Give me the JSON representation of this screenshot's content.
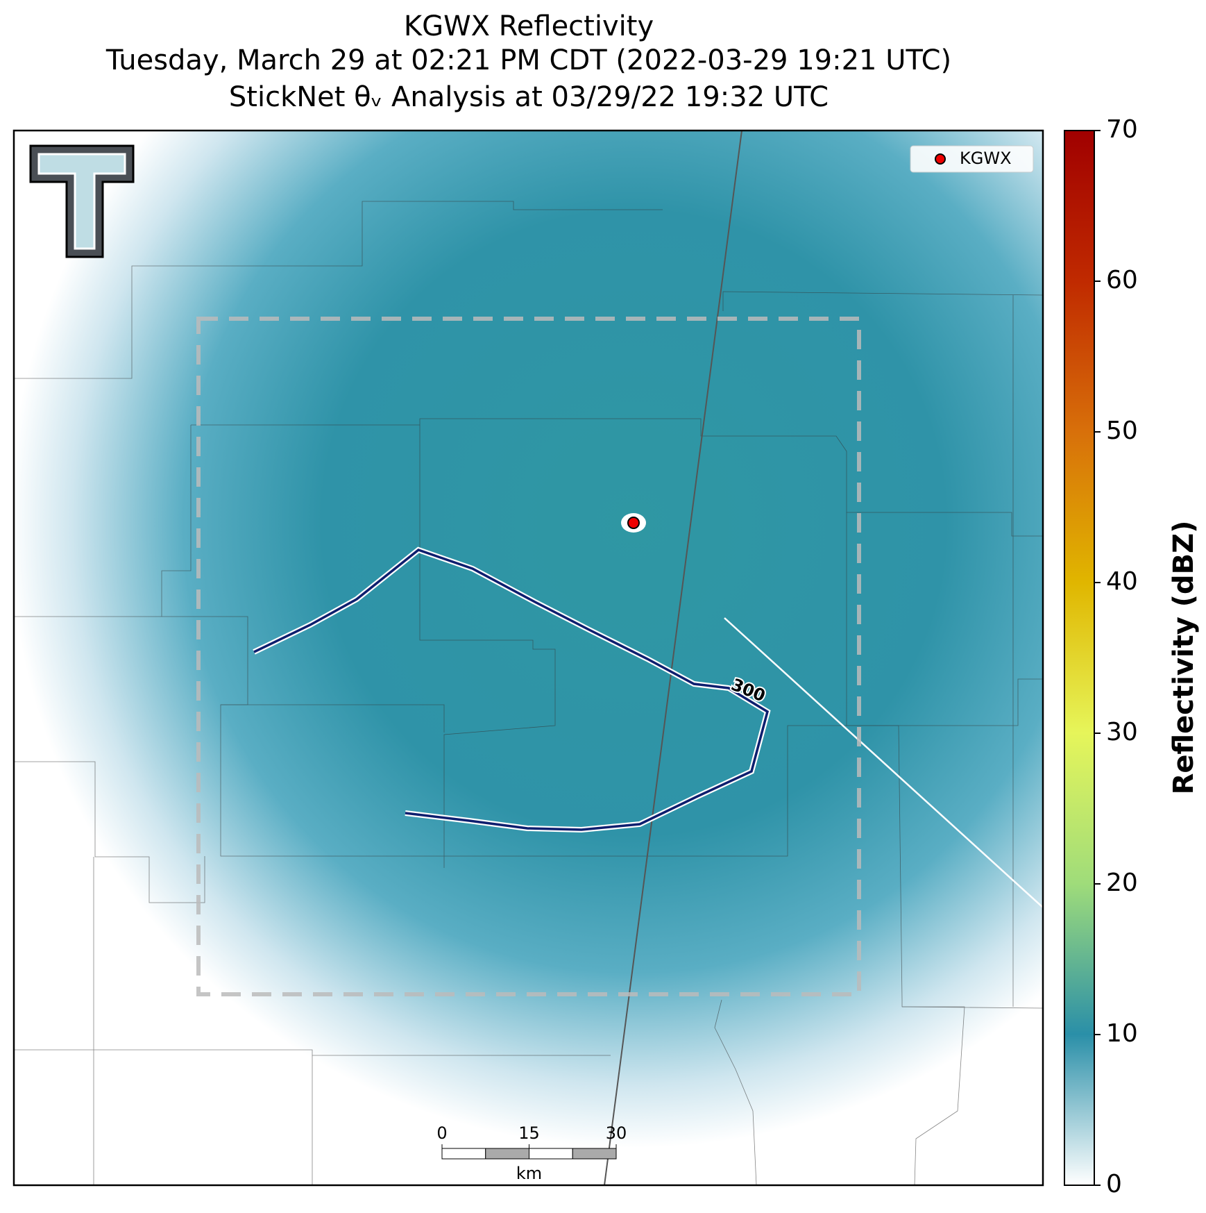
{
  "header": {
    "title": "KGWX Reflectivity",
    "subtitle": "Tuesday, March 29 at 02:21 PM CDT (2022-03-29 19:21 UTC)",
    "analysis": "StickNet θᵥ Analysis at 03/29/22 19:32 UTC"
  },
  "map": {
    "legend": "KGWX",
    "contour_label": "300"
  },
  "scale_bar": {
    "ticks": [
      0,
      15,
      30
    ],
    "unit": "km"
  },
  "colorbar": {
    "label": "Reflectivity (dBZ)",
    "lim": [
      0,
      70
    ],
    "ticks": [
      0,
      10,
      20,
      30,
      40,
      50,
      60,
      70
    ]
  }
}
